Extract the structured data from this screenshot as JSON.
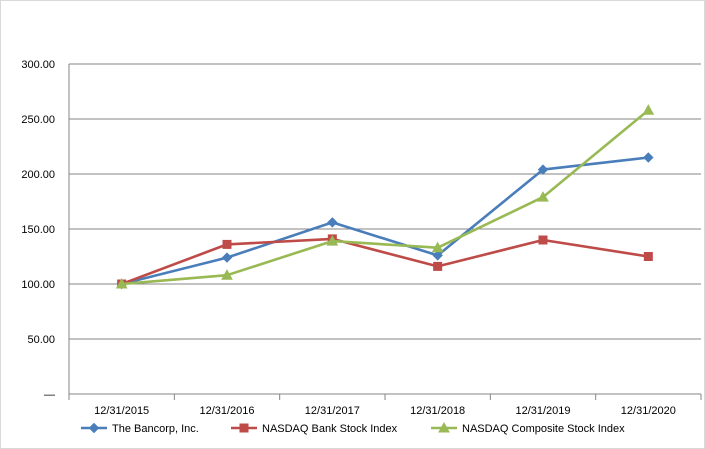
{
  "chart_data": {
    "type": "line",
    "title": "",
    "xlabel": "",
    "ylabel": "",
    "categories": [
      "12/31/2015",
      "12/31/2016",
      "12/31/2017",
      "12/31/2018",
      "12/31/2019",
      "12/31/2020"
    ],
    "ylim": [
      0,
      300
    ],
    "yticks": [
      0,
      50,
      100,
      150,
      200,
      250,
      300
    ],
    "ytick_labels": [
      "—",
      "50.00",
      "100.00",
      "150.00",
      "200.00",
      "250.00",
      "300.00"
    ],
    "grid": "horizontal",
    "legend_position": "bottom",
    "series": [
      {
        "name": "The Bancorp, Inc.",
        "marker": "diamond",
        "color": "#4a7ebb",
        "values": [
          100,
          124,
          156,
          126,
          204,
          215
        ]
      },
      {
        "name": "NASDAQ Bank Stock Index",
        "marker": "square",
        "color": "#be4b48",
        "values": [
          100,
          136,
          141,
          116,
          140,
          125
        ]
      },
      {
        "name": "NASDAQ Composite Stock Index",
        "marker": "triangle",
        "color": "#98b954",
        "values": [
          100,
          108,
          139,
          133,
          179,
          258
        ]
      }
    ]
  }
}
